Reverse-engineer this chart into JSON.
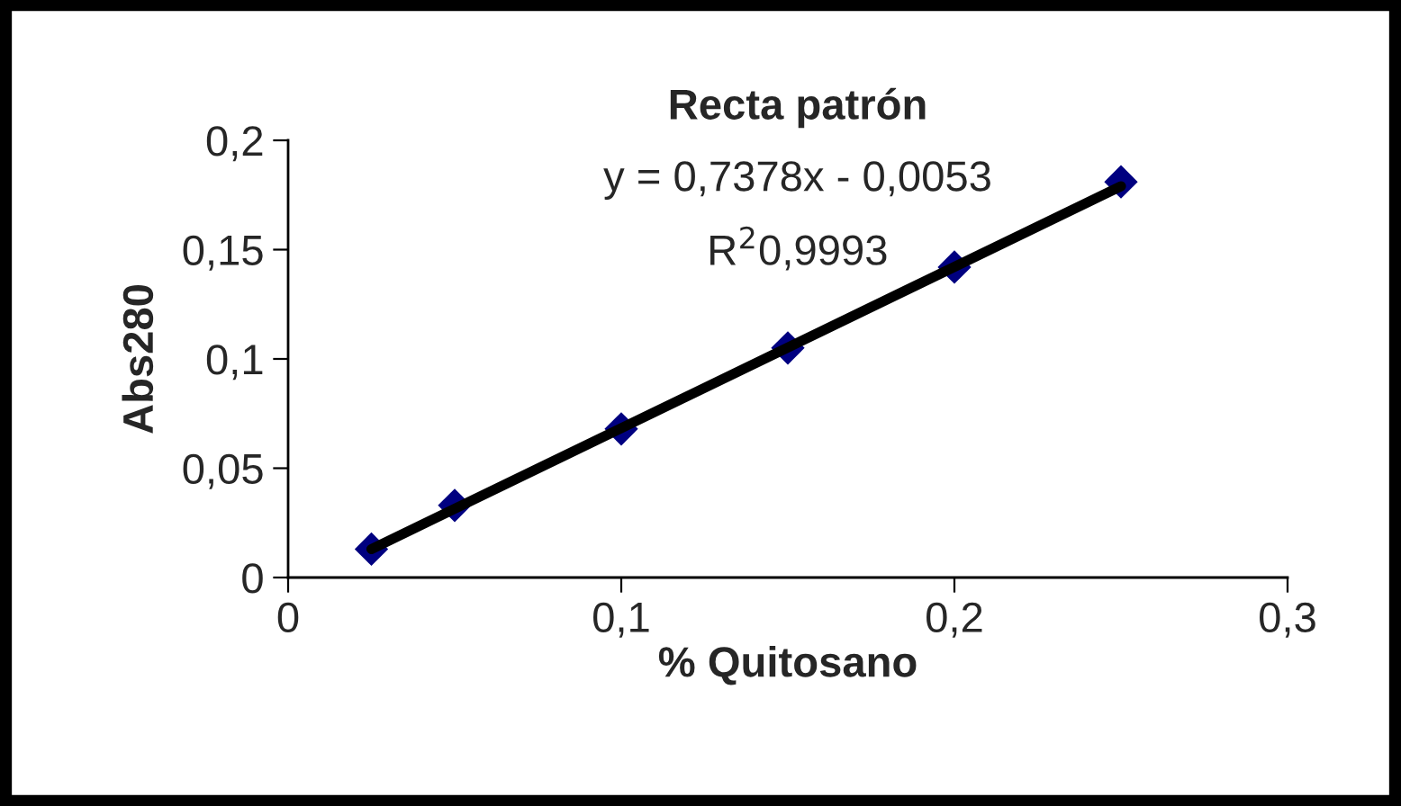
{
  "chart_data": {
    "type": "scatter",
    "title": "Recta patrón",
    "xlabel": "% Quitosano",
    "ylabel": "Abs280",
    "annotations": [
      "y = 0,7378x - 0,0053",
      "R$^{2}$0,9993"
    ],
    "x": [
      0.025,
      0.05,
      0.1,
      0.15,
      0.2,
      0.25
    ],
    "series": [
      {
        "color": "#000080",
        "values": [
          0.013,
          0.033,
          0.068,
          0.105,
          0.142,
          0.181
        ],
        "marker": "diamond"
      },
      {
        "type": "line",
        "color": "#000000",
        "x": [
          0.025,
          0.25
        ],
        "values": [
          0.013,
          0.179
        ],
        "line_style": "solid"
      }
    ],
    "xlim": [
      0,
      0.3
    ],
    "ylim": [
      0,
      0.2
    ],
    "xticks": [
      0,
      {
        "value": 0.1,
        "label": "0,1"
      },
      {
        "value": 0.2,
        "label": "0,2"
      },
      {
        "value": 0.3,
        "label": "0,3"
      }
    ],
    "yticks": [
      0,
      {
        "value": 0.05,
        "label": "0,05"
      },
      {
        "value": 0.1,
        "label": "0,1"
      },
      {
        "value": 0.15,
        "label": "0,15"
      },
      {
        "value": 0.2,
        "label": "0,2"
      }
    ],
    "grid": false,
    "legend": false
  }
}
